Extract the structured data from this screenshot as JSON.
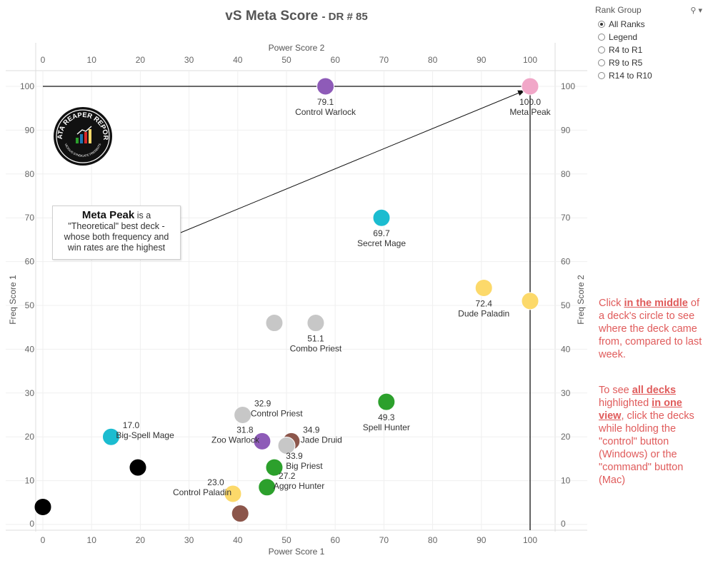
{
  "title": {
    "main": "vS Meta Score",
    "sub": "DR # 85"
  },
  "rank_group": {
    "label": "Rank Group",
    "options": [
      {
        "label": "All Ranks",
        "selected": true
      },
      {
        "label": "Legend",
        "selected": false
      },
      {
        "label": "R4 to R1",
        "selected": false
      },
      {
        "label": "R9 to R5",
        "selected": false
      },
      {
        "label": "R14 to R10",
        "selected": false
      }
    ]
  },
  "callout": {
    "bold": "Meta Peak",
    "text1": " is a",
    "text2": "\"Theoretical\" best deck -",
    "text3": "whose both frequency and",
    "text4": "win rates are the highest"
  },
  "logo": {
    "line1": "DATA REAPER REPORT",
    "line2": "VICIOUS SYNDICATE PRESENTS"
  },
  "note1": {
    "p1": "Click ",
    "b1": "in the middle",
    "p2": " of a deck's circle to see where the deck came from, compared to last week."
  },
  "note2": {
    "p1": "To see ",
    "b1": "all decks ",
    "p2": " highlighted ",
    "b2": "in one view",
    "p3": ", click the decks while holding the \"control\" button (Windows) or the \"command\" button (Mac)"
  },
  "colors": {
    "purple": "#8e5bb8",
    "pink": "#f1a7c8",
    "teal": "#1bbcd0",
    "yellow": "#fcd96a",
    "gray": "#c7c7c7",
    "green": "#2ca02c",
    "brown": "#8c564b",
    "black": "#000000",
    "note_red": "#e05b5b"
  },
  "chart_data": {
    "type": "scatter",
    "xlabel_top": "Power Score 2",
    "xlabel_bottom": "Power Score 1",
    "ylabel_left": "Freq Score 1",
    "ylabel_right": "Freq Score 2",
    "xlim": [
      0,
      105
    ],
    "ylim": [
      -1,
      103
    ],
    "xticks": [
      "0",
      "10",
      "20",
      "30",
      "40",
      "50",
      "60",
      "70",
      "80",
      "90",
      "100"
    ],
    "yticks": [
      "0",
      "10",
      "20",
      "30",
      "40",
      "50",
      "60",
      "70",
      "80",
      "90",
      "100"
    ],
    "reference_lines": {
      "x": 100,
      "y": 100
    },
    "points": [
      {
        "x": 58,
        "y": 100,
        "color": "purple",
        "score": "79.1",
        "name": "Control Warlock",
        "label_pos": "below"
      },
      {
        "x": 100,
        "y": 100,
        "color": "pink",
        "score": "100.0",
        "name": "Meta Peak",
        "label_pos": "below"
      },
      {
        "x": 69.5,
        "y": 70,
        "color": "teal",
        "score": "69.7",
        "name": "Secret Mage",
        "label_pos": "below"
      },
      {
        "x": 90.5,
        "y": 54,
        "color": "yellow",
        "score": "72.4",
        "name": "Dude Paladin",
        "label_pos": "below"
      },
      {
        "x": 100,
        "y": 51,
        "color": "yellow",
        "score": "",
        "name": "",
        "label_pos": "none"
      },
      {
        "x": 47.5,
        "y": 46,
        "color": "gray",
        "score": "",
        "name": "",
        "label_pos": "none"
      },
      {
        "x": 56,
        "y": 46,
        "color": "gray",
        "score": "51.1",
        "name": "Combo Priest",
        "label_pos": "below"
      },
      {
        "x": 70.5,
        "y": 28,
        "color": "green",
        "score": "49.3",
        "name": "Spell Hunter",
        "label_pos": "below"
      },
      {
        "x": 41,
        "y": 25,
        "color": "gray",
        "score": "32.9",
        "name": "Control Priest",
        "label_pos": "right"
      },
      {
        "x": 14,
        "y": 20,
        "color": "teal",
        "score": "17.0",
        "name": "Big-Spell Mage",
        "label_pos": "right"
      },
      {
        "x": 45,
        "y": 19,
        "color": "purple",
        "score": "31.8",
        "name": "Zoo Warlock",
        "label_pos": "left"
      },
      {
        "x": 51,
        "y": 19,
        "color": "brown",
        "score": "34.9",
        "name": "Jade Druid",
        "label_pos": "right"
      },
      {
        "x": 50,
        "y": 18,
        "color": "gray",
        "score": "",
        "name": "",
        "label_pos": "none"
      },
      {
        "x": 19.5,
        "y": 13,
        "color": "black",
        "score": "",
        "name": "",
        "label_pos": "none"
      },
      {
        "x": 47.5,
        "y": 13,
        "color": "green",
        "score": "33.9",
        "name": "Big Priest",
        "label_pos": "right"
      },
      {
        "x": 46,
        "y": 8.5,
        "color": "green",
        "score": "27.2",
        "name": "Aggro Hunter",
        "label_pos": "right"
      },
      {
        "x": 39,
        "y": 7,
        "color": "yellow",
        "score": "23.0",
        "name": "Control Paladin",
        "label_pos": "left"
      },
      {
        "x": 0,
        "y": 4,
        "color": "black",
        "score": "",
        "name": "",
        "label_pos": "none"
      },
      {
        "x": 40.5,
        "y": 2.5,
        "color": "brown",
        "score": "",
        "name": "",
        "label_pos": "none"
      }
    ],
    "annotation_arrow": {
      "from": "callout",
      "to": "Meta Peak"
    }
  }
}
